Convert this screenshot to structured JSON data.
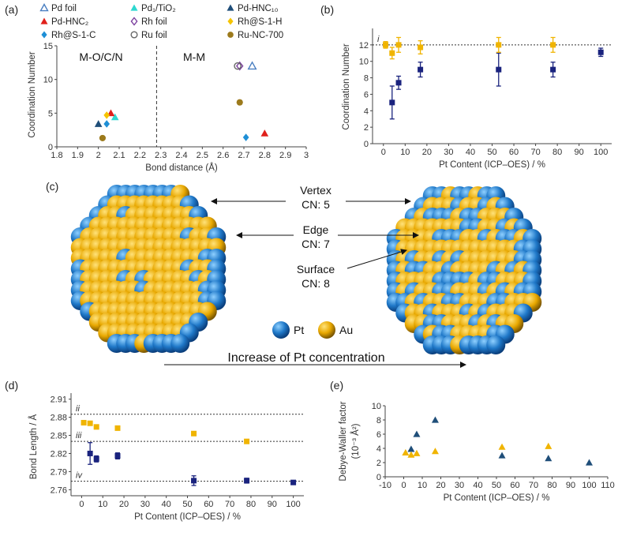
{
  "colors": {
    "pt": "#1a237e",
    "au": "#f0b400",
    "axis": "#444444",
    "sphere_blue": "#1f78c8",
    "sphere_gold": "#e8a800"
  },
  "panel_labels": [
    "(a)",
    "(b)",
    "(c)",
    "(d)",
    "(e)"
  ],
  "chart_data": [
    {
      "id": "a",
      "type": "scatter",
      "xlabel": "Bond distance (Å)",
      "ylabel": "Coordination Number",
      "xlim": [
        1.8,
        3.0
      ],
      "ylim": [
        0,
        15
      ],
      "xticks": [
        "1.8",
        "1.9",
        "2",
        "2.1",
        "2.2",
        "2.3",
        "2.4",
        "2.5",
        "2.6",
        "2.7",
        "2.8",
        "2.9",
        "3"
      ],
      "yticks": [
        "0",
        "5",
        "10",
        "15"
      ],
      "region_labels": [
        "M-O/C/N",
        "M-M"
      ],
      "divider_x": 2.28,
      "legend": [
        {
          "label": "Pd foil",
          "marker": "triangle-open",
          "color": "#4a7fc1"
        },
        {
          "label": "Pd₁/TiO₂",
          "marker": "triangle",
          "color": "#2ed8d0"
        },
        {
          "label": "Pd-HNC₁₀",
          "marker": "triangle",
          "color": "#1f4e79"
        },
        {
          "label": "Pd-HNC₂",
          "marker": "triangle",
          "color": "#e0201b"
        },
        {
          "label": "Rh foil",
          "marker": "diamond-open",
          "color": "#7b3f9e"
        },
        {
          "label": "Rh@S-1-H",
          "marker": "diamond",
          "color": "#f5c400"
        },
        {
          "label": "Rh@S-1-C",
          "marker": "diamond",
          "color": "#1e8fd6"
        },
        {
          "label": "Ru foil",
          "marker": "circle-open",
          "color": "#666666"
        },
        {
          "label": "Ru-NC-700",
          "marker": "circle",
          "color": "#9c7a1c"
        }
      ],
      "points": [
        {
          "series": "Pd foil",
          "x": 2.74,
          "y": 12
        },
        {
          "series": "Pd₁/TiO₂",
          "x": 2.08,
          "y": 4.4
        },
        {
          "series": "Pd-HNC₁₀",
          "x": 2.0,
          "y": 3.4
        },
        {
          "series": "Pd-HNC₂",
          "x": 2.06,
          "y": 5.0
        },
        {
          "series": "Pd-HNC₂",
          "x": 2.8,
          "y": 2.0
        },
        {
          "series": "Rh foil",
          "x": 2.68,
          "y": 12
        },
        {
          "series": "Rh@S-1-H",
          "x": 2.04,
          "y": 4.7
        },
        {
          "series": "Rh@S-1-C",
          "x": 2.04,
          "y": 3.4
        },
        {
          "series": "Rh@S-1-C",
          "x": 2.71,
          "y": 1.4
        },
        {
          "series": "Ru foil",
          "x": 2.67,
          "y": 12
        },
        {
          "series": "Ru-NC-700",
          "x": 2.68,
          "y": 6.6
        },
        {
          "series": "Ru-NC-700",
          "x": 2.02,
          "y": 1.3
        }
      ]
    },
    {
      "id": "b",
      "type": "scatter",
      "xlabel": "Pt Content (ICP–OES) / %",
      "ylabel": "Coordination Number",
      "xlim": [
        -5,
        105
      ],
      "ylim": [
        0,
        14
      ],
      "xticks": [
        "0",
        "10",
        "20",
        "30",
        "40",
        "50",
        "60",
        "70",
        "80",
        "90",
        "100"
      ],
      "yticks": [
        "0",
        "2",
        "4",
        "6",
        "8",
        "10",
        "12"
      ],
      "reference_lines": [
        {
          "y": 12,
          "label": "i"
        }
      ],
      "series": [
        {
          "name": "Pt",
          "color": "#1a237e",
          "x": [
            4,
            7,
            17,
            53,
            78,
            100
          ],
          "y": [
            5,
            7.4,
            9,
            9,
            9,
            11.1
          ],
          "err": [
            2,
            0.8,
            0.9,
            2,
            0.9,
            0.5
          ]
        },
        {
          "name": "Au",
          "color": "#f0b400",
          "x": [
            1,
            4,
            7,
            17,
            53,
            78
          ],
          "y": [
            12,
            11,
            12,
            11.7,
            12,
            12
          ],
          "err": [
            0.4,
            0.7,
            0.9,
            0.8,
            0.9,
            0.9
          ]
        }
      ]
    },
    {
      "id": "d",
      "type": "scatter",
      "xlabel": "Pt Content (ICP–OES) / %",
      "ylabel": "Bond Length / Å",
      "xlim": [
        -5,
        105
      ],
      "ylim": [
        2.75,
        2.92
      ],
      "xticks": [
        "0",
        "10",
        "20",
        "30",
        "40",
        "50",
        "60",
        "70",
        "80",
        "90",
        "100"
      ],
      "yticks": [
        "2.76",
        "2.79",
        "2.82",
        "2.85",
        "2.88",
        "2.91"
      ],
      "reference_lines": [
        {
          "y": 2.885,
          "label": "ii"
        },
        {
          "y": 2.84,
          "label": "iii"
        },
        {
          "y": 2.774,
          "label": "iv"
        }
      ],
      "series": [
        {
          "name": "Pt",
          "color": "#1a237e",
          "x": [
            4,
            7,
            17,
            53,
            78,
            100
          ],
          "y": [
            2.82,
            2.811,
            2.816,
            2.775,
            2.775,
            2.772
          ],
          "err": [
            0.018,
            0.005,
            0.005,
            0.008,
            0.004,
            0
          ]
        },
        {
          "name": "Au",
          "color": "#f0b400",
          "x": [
            1,
            4,
            7,
            17,
            53,
            78
          ],
          "y": [
            2.871,
            2.87,
            2.864,
            2.862,
            2.853,
            2.84
          ],
          "err": [
            0,
            0,
            0,
            0,
            0,
            0
          ]
        }
      ]
    },
    {
      "id": "e",
      "type": "scatter",
      "xlabel": "Pt Content (ICP–OES) / %",
      "ylabel": "Debye-Waller factor (10⁻³ Å²)",
      "xlim": [
        -10,
        110
      ],
      "ylim": [
        0,
        10
      ],
      "xticks": [
        "-10",
        "0",
        "10",
        "20",
        "30",
        "40",
        "50",
        "60",
        "70",
        "80",
        "90",
        "100",
        "110"
      ],
      "yticks": [
        "0",
        "2",
        "4",
        "6",
        "8",
        "10"
      ],
      "series": [
        {
          "name": "Pt",
          "color": "#1f4e79",
          "x": [
            4,
            7,
            17,
            53,
            78,
            100
          ],
          "y": [
            3.9,
            6.0,
            8.0,
            3.0,
            2.6,
            2.0
          ]
        },
        {
          "name": "Au",
          "color": "#f0b400",
          "x": [
            1,
            4,
            7,
            17,
            53,
            78
          ],
          "y": [
            3.4,
            3.1,
            3.3,
            3.6,
            4.2,
            4.3
          ]
        }
      ]
    }
  ],
  "panel_c": {
    "labels": [
      {
        "title": "Vertex",
        "cn": "CN: 5"
      },
      {
        "title": "Edge",
        "cn": "CN: 7"
      },
      {
        "title": "Surface",
        "cn": "CN: 8"
      }
    ],
    "legend": [
      {
        "label": "Pt"
      },
      {
        "label": "Au"
      }
    ],
    "arrow_caption": "Increase of Pt concentration"
  }
}
